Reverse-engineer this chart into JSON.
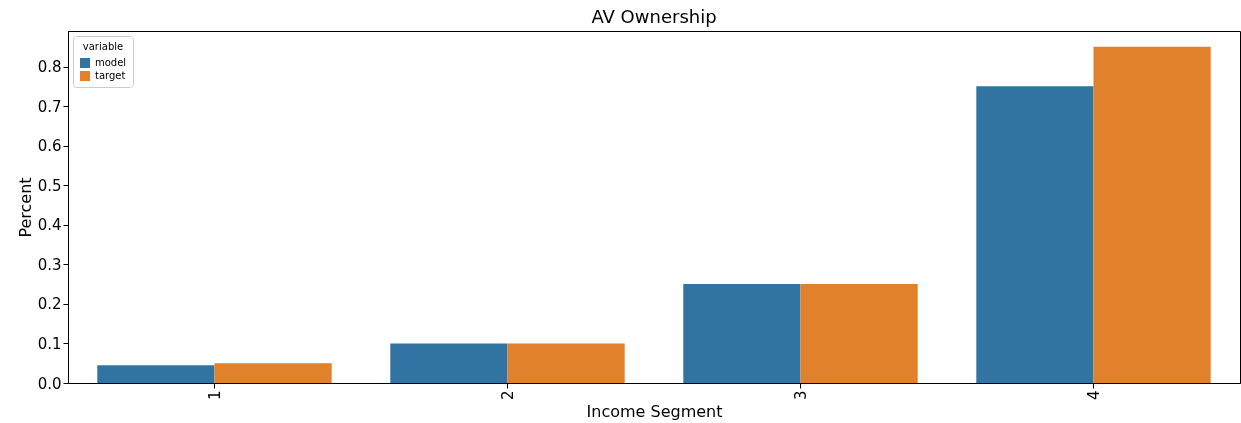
{
  "chart_data": {
    "type": "bar",
    "title": "AV Ownership",
    "xlabel": "Income Segment",
    "ylabel": "Percent",
    "legend_title": "variable",
    "legend": "top left",
    "grid": false,
    "categories": [
      "1",
      "2",
      "3",
      "4"
    ],
    "series": [
      {
        "name": "model",
        "color": "#3274a1",
        "values": [
          0.045,
          0.1,
          0.25,
          0.75
        ]
      },
      {
        "name": "target",
        "color": "#e1812c",
        "values": [
          0.05,
          0.1,
          0.25,
          0.85
        ]
      }
    ],
    "ylim": [
      0,
      0.89
    ],
    "yticks": [
      {
        "value": 0,
        "label": "0.0"
      },
      0.1,
      0.2,
      0.3,
      0.4,
      0.5,
      0.6,
      0.7,
      0.8
    ]
  }
}
